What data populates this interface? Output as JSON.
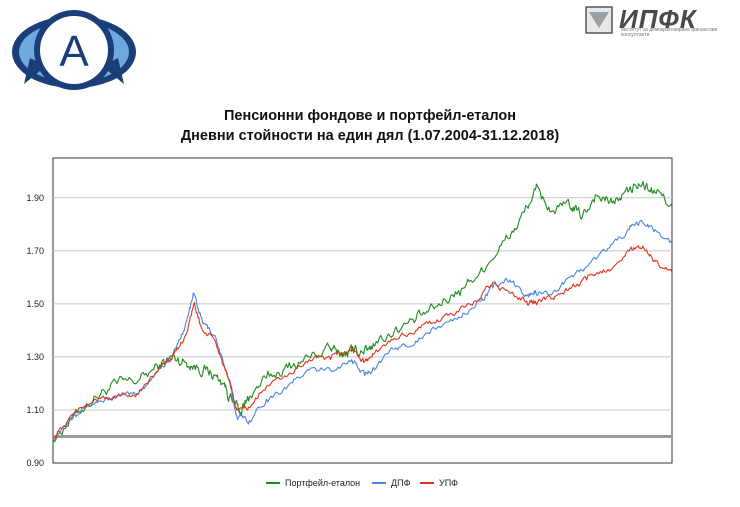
{
  "brand": {
    "left_logo_letter": "A",
    "right_logo_text": "ИПФК",
    "right_logo_subtext": "институт за демократизиране финансови консултанти"
  },
  "chart_data": {
    "type": "line",
    "title": "Пенсионни фондове и портфейл-еталон",
    "subtitle": "Дневни стойности на един дял (1.07.2004-31.12.2018)",
    "xlabel": "",
    "ylabel": "",
    "ylim": [
      0.9,
      2.05
    ],
    "yticks": [
      "0.90",
      "1.10",
      "1.30",
      "1.50",
      "1.70",
      "1.90"
    ],
    "xlim": [
      2004.5,
      2019.0
    ],
    "reference_line": 1.0,
    "grid": true,
    "legend_position": "bottom",
    "series": [
      {
        "name": "Портфейл-еталон",
        "color": "#1e8c1e",
        "x": [
          2004.5,
          2005.0,
          2005.5,
          2006.0,
          2006.5,
          2007.0,
          2007.3,
          2007.6,
          2007.9,
          2008.2,
          2008.5,
          2008.7,
          2008.9,
          2009.1,
          2009.5,
          2010.0,
          2010.5,
          2011.0,
          2011.3,
          2011.5,
          2011.8,
          2012.0,
          2012.5,
          2013.0,
          2013.5,
          2014.0,
          2014.5,
          2015.0,
          2015.4,
          2015.8,
          2016.2,
          2016.6,
          2016.9,
          2017.2,
          2017.6,
          2018.0,
          2018.3,
          2018.6,
          2019.0
        ],
        "values": [
          0.99,
          1.08,
          1.15,
          1.2,
          1.21,
          1.27,
          1.3,
          1.28,
          1.26,
          1.24,
          1.2,
          1.13,
          1.09,
          1.15,
          1.22,
          1.26,
          1.3,
          1.33,
          1.31,
          1.32,
          1.33,
          1.35,
          1.4,
          1.44,
          1.49,
          1.55,
          1.62,
          1.72,
          1.8,
          1.93,
          1.85,
          1.87,
          1.83,
          1.91,
          1.88,
          1.93,
          1.95,
          1.92,
          1.88
        ]
      },
      {
        "name": "ДПФ",
        "color": "#4a86e0",
        "x": [
          2004.5,
          2005.0,
          2005.5,
          2006.0,
          2006.5,
          2007.0,
          2007.3,
          2007.6,
          2007.8,
          2008.0,
          2008.3,
          2008.6,
          2008.8,
          2009.1,
          2009.5,
          2010.0,
          2010.5,
          2011.0,
          2011.5,
          2011.8,
          2012.0,
          2012.5,
          2013.0,
          2013.5,
          2014.0,
          2014.5,
          2014.8,
          2015.2,
          2015.6,
          2015.8,
          2016.2,
          2016.6,
          2017.0,
          2017.5,
          2018.0,
          2018.3,
          2018.6,
          2019.0
        ],
        "values": [
          0.99,
          1.09,
          1.13,
          1.15,
          1.16,
          1.26,
          1.3,
          1.42,
          1.54,
          1.43,
          1.38,
          1.22,
          1.08,
          1.06,
          1.14,
          1.19,
          1.25,
          1.25,
          1.29,
          1.23,
          1.26,
          1.33,
          1.36,
          1.41,
          1.45,
          1.51,
          1.56,
          1.59,
          1.53,
          1.55,
          1.54,
          1.6,
          1.64,
          1.71,
          1.78,
          1.81,
          1.78,
          1.73
        ]
      },
      {
        "name": "УПФ",
        "color": "#e0331e",
        "x": [
          2004.5,
          2005.0,
          2005.5,
          2006.0,
          2006.5,
          2007.0,
          2007.3,
          2007.6,
          2007.8,
          2008.0,
          2008.3,
          2008.6,
          2008.8,
          2009.1,
          2009.5,
          2010.0,
          2010.5,
          2011.0,
          2011.5,
          2011.8,
          2012.0,
          2012.5,
          2013.0,
          2013.5,
          2014.0,
          2014.5,
          2014.8,
          2015.2,
          2015.6,
          2015.8,
          2016.2,
          2016.6,
          2017.0,
          2017.5,
          2018.0,
          2018.3,
          2018.6,
          2019.0
        ],
        "values": [
          0.99,
          1.09,
          1.14,
          1.15,
          1.16,
          1.26,
          1.3,
          1.38,
          1.5,
          1.4,
          1.36,
          1.22,
          1.1,
          1.11,
          1.19,
          1.23,
          1.29,
          1.29,
          1.33,
          1.28,
          1.31,
          1.37,
          1.4,
          1.44,
          1.47,
          1.52,
          1.58,
          1.54,
          1.51,
          1.51,
          1.52,
          1.56,
          1.59,
          1.63,
          1.7,
          1.71,
          1.66,
          1.62
        ]
      }
    ]
  }
}
